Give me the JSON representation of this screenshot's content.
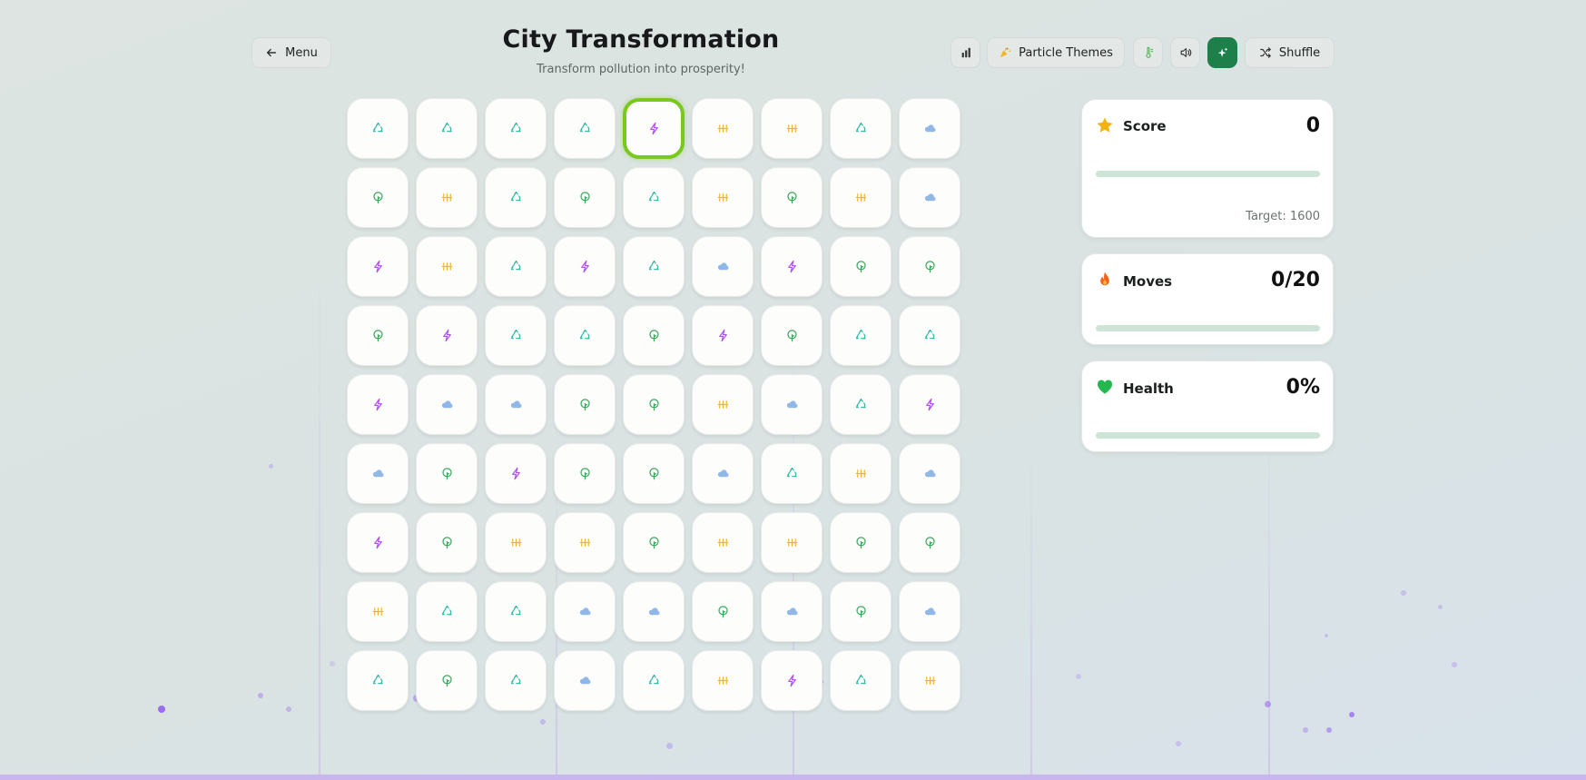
{
  "header": {
    "menu_label": "Menu",
    "title": "City Transformation",
    "subtitle": "Transform pollution into prosperity!",
    "particle_themes_label": "Particle Themes",
    "shuffle_label": "Shuffle"
  },
  "colors": {
    "accent": "#1d7f4a",
    "selected_border": "#78c81e",
    "recycle": "#2bb3a3",
    "tree": "#3aa55c",
    "lightning": "#b052e8",
    "solar": "#f0b429",
    "wind": "#8fb7e8"
  },
  "tile_types": {
    "R": "recycle-icon",
    "T": "tree-icon",
    "L": "lightning-icon",
    "S": "solar-panel-icon",
    "W": "wind-cloud-icon"
  },
  "board": {
    "selected": [
      0,
      4
    ],
    "rows": [
      [
        "R",
        "R",
        "R",
        "R",
        "L",
        "S",
        "S",
        "R",
        "W"
      ],
      [
        "T",
        "S",
        "R",
        "T",
        "R",
        "S",
        "T",
        "S",
        "W"
      ],
      [
        "L",
        "S",
        "R",
        "L",
        "R",
        "W",
        "L",
        "T",
        "T"
      ],
      [
        "T",
        "L",
        "R",
        "R",
        "T",
        "L",
        "T",
        "R",
        "R"
      ],
      [
        "L",
        "W",
        "W",
        "T",
        "T",
        "S",
        "W",
        "R",
        "L"
      ],
      [
        "W",
        "T",
        "L",
        "T",
        "T",
        "W",
        "R",
        "S",
        "W"
      ],
      [
        "L",
        "T",
        "S",
        "S",
        "T",
        "S",
        "S",
        "T",
        "T"
      ],
      [
        "S",
        "R",
        "R",
        "W",
        "W",
        "T",
        "W",
        "T",
        "W"
      ],
      [
        "R",
        "T",
        "R",
        "W",
        "R",
        "S",
        "L",
        "R",
        "S"
      ]
    ]
  },
  "stats": {
    "score": {
      "label": "Score",
      "value": "0",
      "progress": 0,
      "target_text": "Target: 1600"
    },
    "moves": {
      "label": "Moves",
      "value": "0/20",
      "progress": 0
    },
    "health": {
      "label": "Health",
      "value": "0%",
      "progress": 0
    }
  }
}
